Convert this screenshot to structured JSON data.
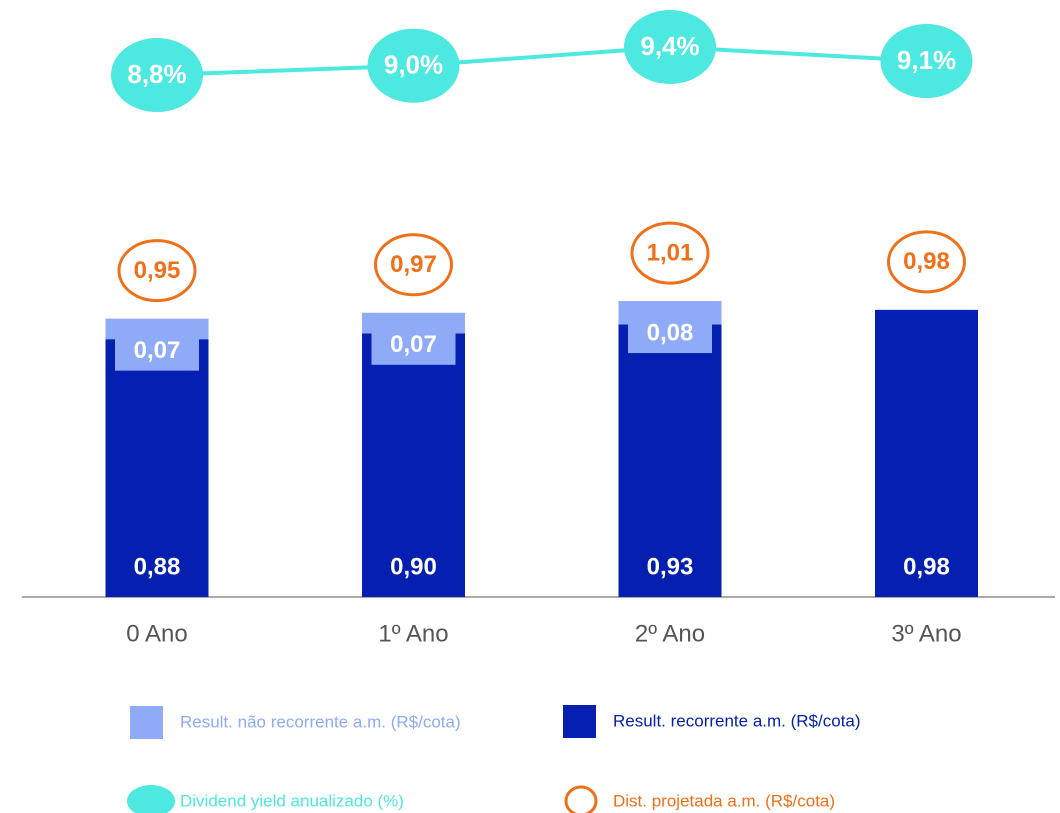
{
  "chart_data": {
    "type": "bar",
    "categories": [
      "0 Ano",
      "1º Ano",
      "2º Ano",
      "3º Ano"
    ],
    "series": [
      {
        "name": "Result. recorrente a.m. (R$/cota)",
        "color": "#0520b0",
        "values": [
          0.88,
          0.9,
          0.93,
          0.98
        ],
        "value_labels": [
          "0,88",
          "0,90",
          "0,93",
          "0,98"
        ]
      },
      {
        "name": "Result. não recorrente a.m. (R$/cota)",
        "color": "#8faaf7",
        "values": [
          0.07,
          0.07,
          0.08,
          null
        ],
        "value_labels": [
          "0,07",
          "0,07",
          "0,08",
          null
        ]
      },
      {
        "name": "Dist. projetada a.m. (R$/cota)",
        "color": "#f07019",
        "values": [
          0.95,
          0.97,
          1.01,
          0.98
        ],
        "value_labels": [
          "0,95",
          "0,97",
          "1,01",
          "0,98"
        ]
      },
      {
        "name": "Dividend yield anualizado (%)",
        "color": "#4de8e0",
        "values": [
          8.8,
          9.0,
          9.4,
          9.1
        ],
        "value_labels": [
          "8,8%",
          "9,0%",
          "9,4%",
          "9,1%"
        ]
      }
    ]
  }
}
